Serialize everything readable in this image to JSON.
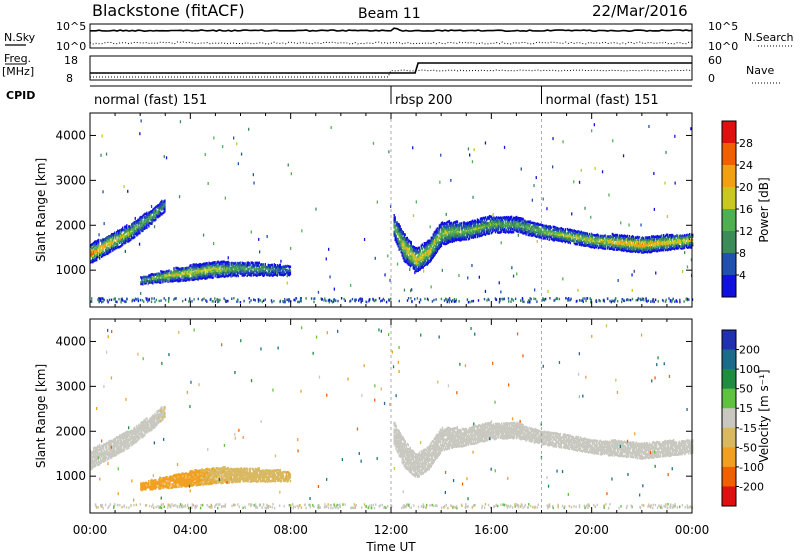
{
  "header": {
    "station": "Blackstone (fitACF)",
    "beam": "Beam 11",
    "date": "22/Mar/2016"
  },
  "top_panels": {
    "nsky_label": "N.Sky",
    "nsearch_label": "N.Search",
    "noise_ticks": [
      "10^5",
      "10^0"
    ],
    "freq_label_1": "Freq.",
    "freq_label_2": "[MHz]",
    "freq_ticks": [
      "18",
      "8"
    ],
    "nave_label": "Nave",
    "nave_ticks": [
      "60",
      "0"
    ],
    "cpid_label": "CPID"
  },
  "cpid_segments": [
    {
      "label": "normal (fast) 151",
      "start_hour": 0
    },
    {
      "label": "rbsp 200",
      "start_hour": 12
    },
    {
      "label": "normal (fast) 151",
      "start_hour": 18
    }
  ],
  "colors": {
    "power_scale": [
      "#1010e0",
      "#2050b0",
      "#3c8c5a",
      "#50b050",
      "#c8c820",
      "#f0a010",
      "#f06000",
      "#e01010"
    ],
    "velocity_scale": [
      "#2030b0",
      "#1c6a8c",
      "#208c40",
      "#60c040",
      "#c8c8c0",
      "#d8b860",
      "#f0a020",
      "#f06000",
      "#e01010"
    ]
  },
  "chart_data": [
    {
      "type": "heatmap",
      "name": "power",
      "xlabel": "",
      "ylabel": "Slant Range [km]",
      "xlim": [
        0,
        24
      ],
      "ylim": [
        180,
        4500
      ],
      "yticks": [
        "1000",
        "2000",
        "3000",
        "4000"
      ],
      "colorbar": {
        "label": "Power [dB]",
        "ticks": [
          "28",
          "24",
          "20",
          "16",
          "12",
          "8",
          "4"
        ],
        "range": [
          0,
          32
        ]
      },
      "echo_bands": [
        {
          "x": [
            0.0,
            0.5,
            1.0,
            1.5,
            2.0,
            2.5,
            3.0
          ],
          "range_km": [
            1400,
            1550,
            1700,
            1850,
            2050,
            2250,
            2500
          ],
          "thickness_km": [
            420,
            400,
            380,
            360,
            330,
            300,
            260
          ],
          "peak_db": [
            26,
            24,
            20,
            18,
            16,
            14,
            10
          ]
        },
        {
          "x": [
            2.0,
            3.0,
            4.0,
            5.0,
            6.0,
            7.0,
            8.0
          ],
          "range_km": [
            800,
            900,
            980,
            1050,
            1070,
            1050,
            1030
          ],
          "thickness_km": [
            150,
            250,
            320,
            330,
            300,
            260,
            200
          ],
          "peak_db": [
            12,
            18,
            20,
            18,
            14,
            12,
            8
          ]
        },
        {
          "x": [
            12.1,
            12.5,
            13.0,
            13.5,
            14.0,
            14.5,
            15.0,
            16.0,
            17.0
          ],
          "range_km": [
            2000,
            1550,
            1250,
            1450,
            1850,
            1900,
            1900,
            2050,
            2050
          ],
          "thickness_km": [
            500,
            600,
            500,
            500,
            500,
            420,
            360,
            360,
            320
          ],
          "peak_db": [
            14,
            20,
            22,
            20,
            18,
            16,
            16,
            14,
            14
          ]
        },
        {
          "x": [
            17.0,
            18.0,
            19.0,
            20.0,
            21.0,
            22.0,
            23.0,
            24.0
          ],
          "range_km": [
            2050,
            1900,
            1800,
            1700,
            1650,
            1600,
            1650,
            1700
          ],
          "thickness_km": [
            320,
            300,
            280,
            300,
            320,
            340,
            320,
            300
          ],
          "peak_db": [
            14,
            16,
            18,
            20,
            22,
            24,
            22,
            20
          ]
        }
      ]
    },
    {
      "type": "heatmap",
      "name": "velocity",
      "xlabel": "Time UT",
      "ylabel": "Slant Range [km]",
      "xlim": [
        0,
        24
      ],
      "ylim": [
        180,
        4500
      ],
      "xticks": [
        "00:00",
        "04:00",
        "08:00",
        "12:00",
        "16:00",
        "20:00",
        "00:00"
      ],
      "yticks": [
        "1000",
        "2000",
        "3000",
        "4000"
      ],
      "colorbar": {
        "label": "Velocity [m s⁻¹]",
        "ticks": [
          "200",
          "100",
          "50",
          "15",
          "-15",
          "-50",
          "-100",
          "-200"
        ],
        "range": [
          -250,
          250
        ]
      },
      "echo_bands": [
        {
          "x": [
            0.0,
            0.5,
            1.0,
            1.5,
            2.0,
            2.5,
            3.0
          ],
          "range_km": [
            1400,
            1550,
            1700,
            1850,
            2050,
            2250,
            2500
          ],
          "thickness_km": [
            420,
            400,
            380,
            360,
            330,
            300,
            260
          ],
          "velocity_ms": [
            0,
            0,
            0,
            0,
            0,
            0,
            -10
          ]
        },
        {
          "x": [
            2.0,
            3.0,
            4.0,
            5.0,
            6.0,
            7.0,
            8.0
          ],
          "range_km": [
            800,
            900,
            980,
            1050,
            1070,
            1050,
            1030
          ],
          "thickness_km": [
            150,
            250,
            320,
            330,
            300,
            260,
            200
          ],
          "velocity_ms": [
            -80,
            -80,
            -70,
            -40,
            -30,
            -30,
            -40
          ]
        },
        {
          "x": [
            12.1,
            12.5,
            13.0,
            13.5,
            14.0,
            14.5,
            15.0,
            16.0,
            17.0
          ],
          "range_km": [
            2000,
            1550,
            1250,
            1450,
            1850,
            1900,
            1900,
            2050,
            2050
          ],
          "thickness_km": [
            500,
            600,
            500,
            500,
            500,
            420,
            360,
            360,
            320
          ],
          "velocity_ms": [
            0,
            0,
            0,
            0,
            0,
            0,
            0,
            0,
            0
          ]
        },
        {
          "x": [
            17.0,
            18.0,
            19.0,
            20.0,
            21.0,
            22.0,
            23.0,
            24.0
          ],
          "range_km": [
            2050,
            1900,
            1800,
            1700,
            1650,
            1600,
            1650,
            1700
          ],
          "thickness_km": [
            320,
            300,
            280,
            300,
            320,
            340,
            320,
            300
          ],
          "velocity_ms": [
            0,
            0,
            0,
            0,
            0,
            0,
            0,
            0
          ]
        }
      ]
    }
  ]
}
